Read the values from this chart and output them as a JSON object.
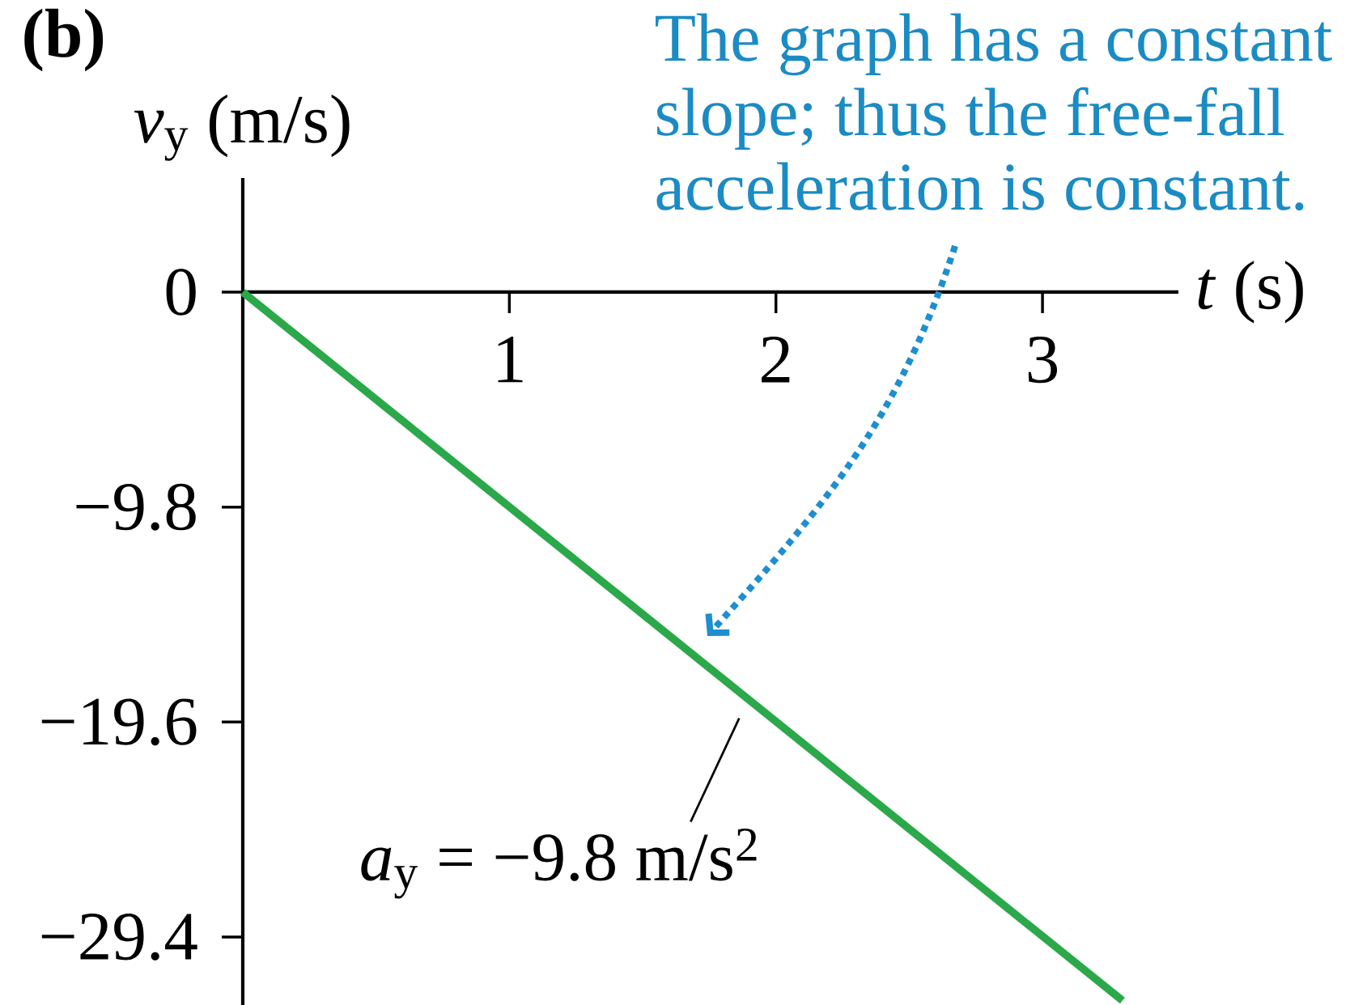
{
  "chart_data": {
    "type": "line",
    "title": "(b)",
    "xlabel": "*t* (s)",
    "ylabel": "*v*$_{y}$ (m/s)",
    "x": [
      0,
      3.3
    ],
    "series": [
      {
        "color": "#2ba84a",
        "values": [
          0,
          -32.3
        ]
      }
    ],
    "xlim": [
      0,
      3.51
    ],
    "ylim": [
      -32.5,
      5.2
    ],
    "xticks": [
      1,
      2,
      3
    ],
    "yticks": [
      {
        "value": -29.4,
        "label": "−29.4"
      },
      {
        "value": -19.6,
        "label": "−19.6"
      },
      {
        "value": -9.8,
        "label": "−9.8"
      },
      0
    ],
    "marker": "none",
    "line_style": "solid",
    "annotations": [
      "The graph has a constant slope; thus the free-fall acceleration is constant.",
      {
        "text": "*a*$_{y}$ = −9.8 m/s$^{2}$",
        "x": 1.85,
        "y": -18.1
      }
    ]
  }
}
